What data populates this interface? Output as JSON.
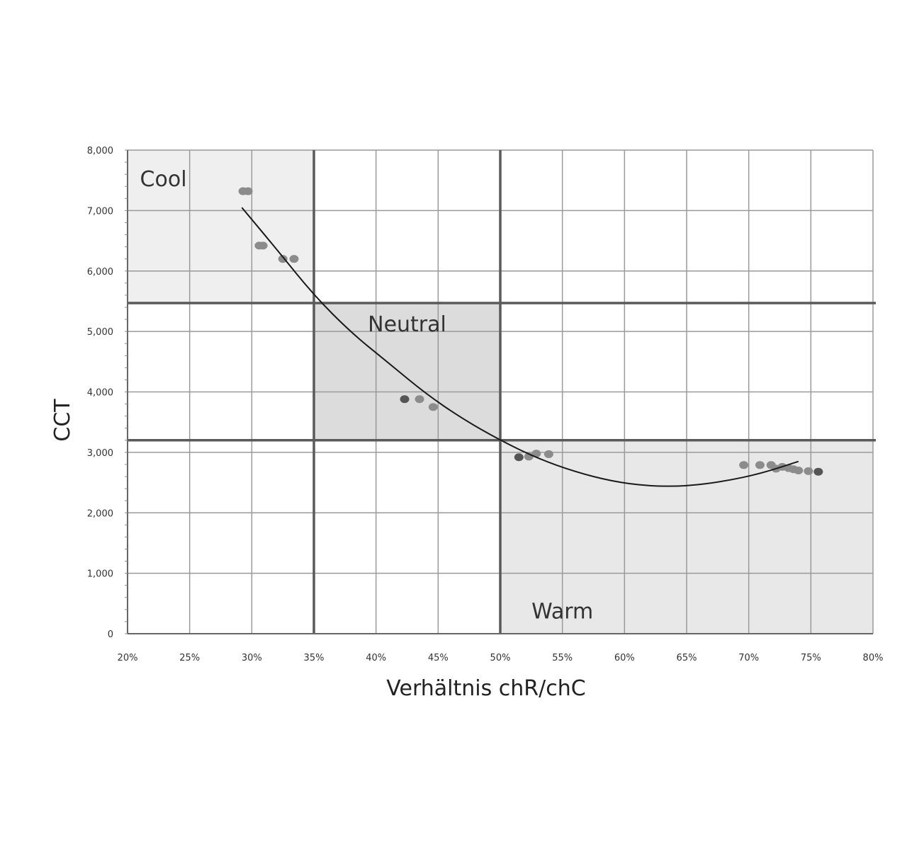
{
  "chart_data": {
    "type": "scatter",
    "title": "",
    "xlabel": "Verhältnis chR/chC",
    "ylabel": "CCT",
    "xlim": [
      20,
      80
    ],
    "ylim": [
      0,
      8000
    ],
    "x_unit": "%",
    "grid": true,
    "x_ticks": [
      {
        "value": 20,
        "label": "20%"
      },
      {
        "value": 25,
        "label": "25%"
      },
      {
        "value": 30,
        "label": "30%"
      },
      {
        "value": 35,
        "label": "35%"
      },
      {
        "value": 40,
        "label": "40%"
      },
      {
        "value": 45,
        "label": "45%"
      },
      {
        "value": 50,
        "label": "50%"
      },
      {
        "value": 55,
        "label": "55%"
      },
      {
        "value": 60,
        "label": "60%"
      },
      {
        "value": 65,
        "label": "65%"
      },
      {
        "value": 70,
        "label": "70%"
      },
      {
        "value": 75,
        "label": "75%"
      },
      {
        "value": 80,
        "label": "80%"
      }
    ],
    "y_ticks": [
      {
        "value": 0,
        "label": "0"
      },
      {
        "value": 1000,
        "label": "1,000"
      },
      {
        "value": 2000,
        "label": "2,000"
      },
      {
        "value": 3000,
        "label": "3,000"
      },
      {
        "value": 4000,
        "label": "4,000"
      },
      {
        "value": 5000,
        "label": "5,000"
      },
      {
        "value": 6000,
        "label": "6,000"
      },
      {
        "value": 7000,
        "label": "7,000"
      },
      {
        "value": 8000,
        "label": "8,000"
      }
    ],
    "regions": [
      {
        "name": "Cool",
        "x_range": [
          20,
          35
        ],
        "y_range": [
          5470,
          8000
        ],
        "shade": "#efefef",
        "label_at": [
          21,
          7400
        ],
        "anchor": "start"
      },
      {
        "name": "Neutral",
        "x_range": [
          35,
          50
        ],
        "y_range": [
          3200,
          5470
        ],
        "shade": "#dcdcdc",
        "label_at": [
          42.5,
          5000
        ],
        "anchor": "middle"
      },
      {
        "name": "Warm",
        "x_range": [
          50,
          80
        ],
        "y_range": [
          0,
          3200
        ],
        "shade": "#e8e8e8",
        "label_at": [
          55,
          250
        ],
        "anchor": "middle"
      }
    ],
    "thresholds": {
      "x": [
        35,
        50
      ],
      "y": [
        3200,
        5470
      ]
    },
    "points": [
      {
        "x": 29.3,
        "y": 7320
      },
      {
        "x": 29.7,
        "y": 7320
      },
      {
        "x": 30.6,
        "y": 6420
      },
      {
        "x": 30.9,
        "y": 6420
      },
      {
        "x": 32.5,
        "y": 6200
      },
      {
        "x": 33.4,
        "y": 6200
      },
      {
        "x": 42.3,
        "y": 3880
      },
      {
        "x": 43.5,
        "y": 3880
      },
      {
        "x": 44.6,
        "y": 3750
      },
      {
        "x": 51.5,
        "y": 2920
      },
      {
        "x": 52.3,
        "y": 2930
      },
      {
        "x": 52.9,
        "y": 2980
      },
      {
        "x": 53.9,
        "y": 2970
      },
      {
        "x": 69.6,
        "y": 2790
      },
      {
        "x": 70.9,
        "y": 2790
      },
      {
        "x": 71.8,
        "y": 2790
      },
      {
        "x": 72.2,
        "y": 2730
      },
      {
        "x": 72.7,
        "y": 2760
      },
      {
        "x": 73.2,
        "y": 2740
      },
      {
        "x": 73.6,
        "y": 2720
      },
      {
        "x": 74.0,
        "y": 2700
      },
      {
        "x": 74.8,
        "y": 2690
      },
      {
        "x": 75.6,
        "y": 2680
      }
    ],
    "trendline": {
      "type": "polynomial",
      "x_range": [
        29.2,
        74.0
      ],
      "points": [
        {
          "x": 29.2,
          "y": 7050
        },
        {
          "x": 32,
          "y": 6360
        },
        {
          "x": 35,
          "y": 5600
        },
        {
          "x": 38,
          "y": 4980
        },
        {
          "x": 41,
          "y": 4480
        },
        {
          "x": 44,
          "y": 3970
        },
        {
          "x": 47,
          "y": 3550
        },
        {
          "x": 50,
          "y": 3200
        },
        {
          "x": 53,
          "y": 2900
        },
        {
          "x": 56,
          "y": 2680
        },
        {
          "x": 59,
          "y": 2520
        },
        {
          "x": 62,
          "y": 2440
        },
        {
          "x": 65,
          "y": 2440
        },
        {
          "x": 68,
          "y": 2520
        },
        {
          "x": 71,
          "y": 2650
        },
        {
          "x": 74,
          "y": 2850
        }
      ]
    },
    "colors": {
      "grid": "#9a9a9a",
      "threshold": "#5a5a5a",
      "point": "#8c8c8c",
      "point_dark": "#555555",
      "trend": "#1a1a1a"
    }
  }
}
